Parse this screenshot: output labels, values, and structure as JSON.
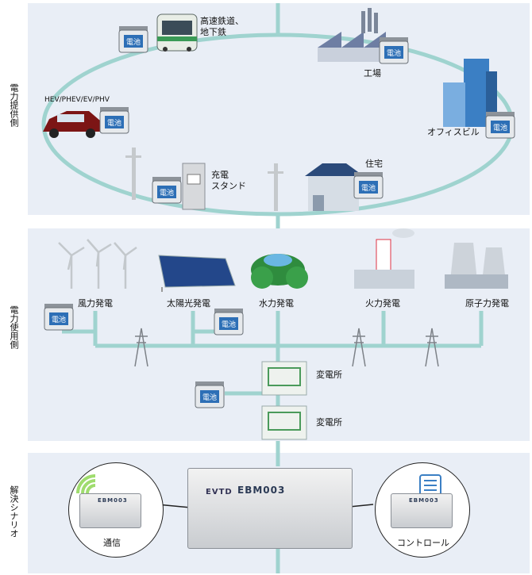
{
  "side_labels": {
    "supply": "電力提供側",
    "usage": "電力使用側",
    "solution": "解決シナリオ"
  },
  "supply": {
    "rail": "高速鉄道、地下鉄",
    "rail_line1": "高速鉄道、",
    "rail_line2": "地下鉄",
    "factory": "工場",
    "office": "オフィスビル",
    "ev": "HEV/PHEV/EV/PHV",
    "charge_line1": "充電",
    "charge_line2": "スタンド",
    "house": "住宅"
  },
  "usage": {
    "wind": "風力発電",
    "solar": "太陽光発電",
    "hydro": "水力発電",
    "thermal": "火力発電",
    "nuclear": "原子力発電",
    "substation1": "変電所",
    "substation2": "変電所"
  },
  "solution": {
    "comm": "通信",
    "control": "コントロール",
    "device_model": "EBM003",
    "device_brand": "EVTD",
    "small_model": "EBM003"
  },
  "battery_label": "電池",
  "colors": {
    "line": "#9fd3cf",
    "panel": "#e9eef6",
    "battery_blue": "#2d6fb6"
  }
}
